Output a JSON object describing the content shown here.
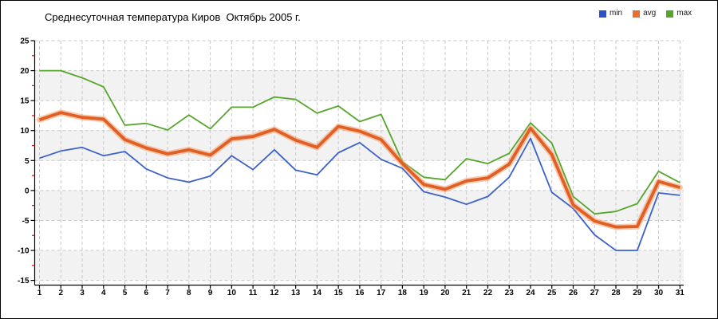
{
  "window": {
    "background": "#ffffff",
    "border_color": "#000000"
  },
  "header": {
    "title": "Среднесуточная температура Киров  Октябрь 2005 г."
  },
  "legend": {
    "items": [
      {
        "label": "min",
        "color": "#2a52cc"
      },
      {
        "label": "avg",
        "color": "#e8702d"
      },
      {
        "label": "max",
        "color": "#55a62b"
      }
    ]
  },
  "axes_style": {
    "axis_color": "#000000",
    "major_tick_color": "#000000",
    "minor_tick_color": "#cc1111",
    "grid_color": "#c9c9c9",
    "band_color": "#f2f2f2",
    "tick_label_color": "#000000"
  },
  "chart_data": {
    "type": "line",
    "title": "Среднесуточная температура Киров  Октябрь 2005 г.",
    "xlabel": "",
    "ylabel": "",
    "x": [
      1,
      2,
      3,
      4,
      5,
      6,
      7,
      8,
      9,
      10,
      11,
      12,
      13,
      14,
      15,
      16,
      17,
      18,
      19,
      20,
      21,
      22,
      23,
      24,
      25,
      26,
      27,
      28,
      29,
      30,
      31
    ],
    "x_ticks": [
      "1",
      "2",
      "3",
      "4",
      "5",
      "6",
      "7",
      "8",
      "9",
      "10",
      "11",
      "12",
      "13",
      "14",
      "15",
      "16",
      "17",
      "18",
      "19",
      "20",
      "21",
      "22",
      "23",
      "24",
      "25",
      "26",
      "27",
      "28",
      "29",
      "30",
      "31"
    ],
    "y_ticks": [
      25,
      20,
      15,
      10,
      5,
      0,
      -5,
      -10,
      -15
    ],
    "ylim": [
      -15,
      25
    ],
    "y_tick_step": 5,
    "y_minor_tick_step": 2.5,
    "grid": true,
    "legend_position": "top-right",
    "series": [
      {
        "name": "min",
        "color": "#3d61c9",
        "values": [
          5.4,
          6.6,
          7.2,
          5.8,
          6.5,
          3.6,
          2.1,
          1.4,
          2.4,
          5.8,
          3.5,
          6.8,
          3.4,
          2.6,
          6.3,
          8.0,
          5.2,
          3.7,
          -0.2,
          -1.1,
          -2.3,
          -1.0,
          2.2,
          8.7,
          -0.3,
          -3.0,
          -7.4,
          -10.0,
          -10.0,
          -0.4,
          -0.8
        ]
      },
      {
        "name": "avg",
        "color": "#e05f25",
        "halo": "#f59c66",
        "values": [
          11.8,
          13.0,
          12.2,
          11.9,
          8.5,
          7.1,
          6.1,
          6.8,
          5.9,
          8.6,
          9.0,
          10.2,
          8.4,
          7.2,
          10.7,
          9.9,
          8.5,
          4.5,
          1.0,
          0.2,
          1.6,
          2.1,
          4.4,
          10.4,
          6.0,
          -2.4,
          -5.1,
          -6.1,
          -6.0,
          1.5,
          0.5
        ]
      },
      {
        "name": "max",
        "color": "#56a62b",
        "values": [
          20.0,
          20.0,
          18.8,
          17.3,
          10.9,
          11.2,
          10.1,
          12.6,
          10.3,
          13.9,
          13.9,
          15.6,
          15.2,
          12.9,
          14.1,
          11.5,
          12.7,
          4.8,
          2.2,
          1.8,
          5.3,
          4.5,
          6.2,
          11.3,
          7.9,
          -1.0,
          -3.9,
          -3.5,
          -2.2,
          3.2,
          1.3
        ]
      }
    ]
  }
}
